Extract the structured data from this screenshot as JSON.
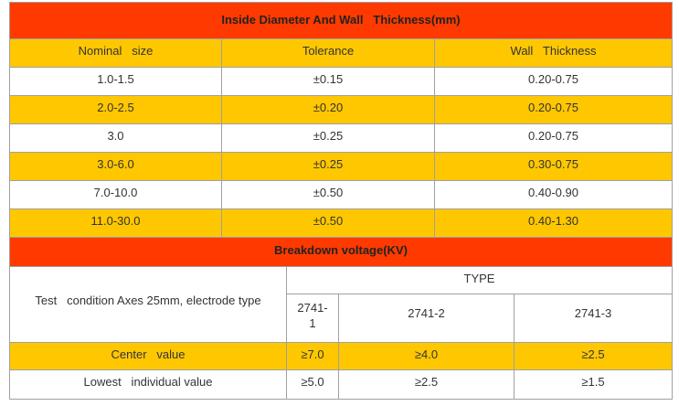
{
  "table1": {
    "title": "Inside Diameter And Wall   Thickness(mm)",
    "header": [
      "Nominal   size",
      "Tolerance",
      "Wall   Thickness"
    ],
    "rows": [
      [
        "1.0-1.5",
        "±0.15",
        "0.20-0.75"
      ],
      [
        "2.0-2.5",
        "±0.20",
        "0.20-0.75"
      ],
      [
        "3.0",
        "±0.25",
        "0.20-0.75"
      ],
      [
        "3.0-6.0",
        "±0.25",
        "0.30-0.75"
      ],
      [
        "7.0-10.0",
        "±0.50",
        "0.40-0.90"
      ],
      [
        "11.0-30.0",
        "±0.50",
        "0.40-1.30"
      ]
    ]
  },
  "table2": {
    "title": "Breakdown voltage(KV)",
    "condition_label": "Test   condition Axes 25mm, electrode type",
    "type_label": "TYPE",
    "types": [
      "2741-1",
      "2741-2",
      "2741-3"
    ],
    "rows": [
      {
        "label": "Center   value",
        "values": [
          "≥7.0",
          "≥4.0",
          "≥2.5"
        ]
      },
      {
        "label": "Lowest   individual value",
        "values": [
          "≥5.0",
          "≥2.5",
          "≥1.5"
        ]
      }
    ]
  }
}
